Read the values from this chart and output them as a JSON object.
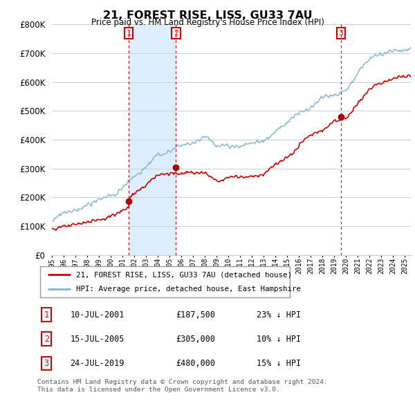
{
  "title": "21, FOREST RISE, LISS, GU33 7AU",
  "subtitle": "Price paid vs. HM Land Registry's House Price Index (HPI)",
  "ylim": [
    0,
    800000
  ],
  "xlim_start": 1995.0,
  "xlim_end": 2025.5,
  "sale_dates": [
    2001.53,
    2005.54,
    2019.56
  ],
  "sale_prices": [
    187500,
    305000,
    480000
  ],
  "sale_labels": [
    "1",
    "2",
    "3"
  ],
  "sale_info": [
    {
      "label": "1",
      "date": "10-JUL-2001",
      "price": "£187,500",
      "pct": "23% ↓ HPI"
    },
    {
      "label": "2",
      "date": "15-JUL-2005",
      "price": "£305,000",
      "pct": "10% ↓ HPI"
    },
    {
      "label": "3",
      "date": "24-JUL-2019",
      "price": "£480,000",
      "pct": "15% ↓ HPI"
    }
  ],
  "legend_line1": "21, FOREST RISE, LISS, GU33 7AU (detached house)",
  "legend_line2": "HPI: Average price, detached house, East Hampshire",
  "footer1": "Contains HM Land Registry data © Crown copyright and database right 2024.",
  "footer2": "This data is licensed under the Open Government Licence v3.0.",
  "price_line_color": "#cc0000",
  "hpi_line_color": "#7fb3d3",
  "shade_color": "#ddeeff",
  "grid_color": "#cccccc",
  "bg_color": "#ffffff",
  "vline_color": "#cc0000",
  "box_color": "#cc0000",
  "dot_color": "#aa0000"
}
